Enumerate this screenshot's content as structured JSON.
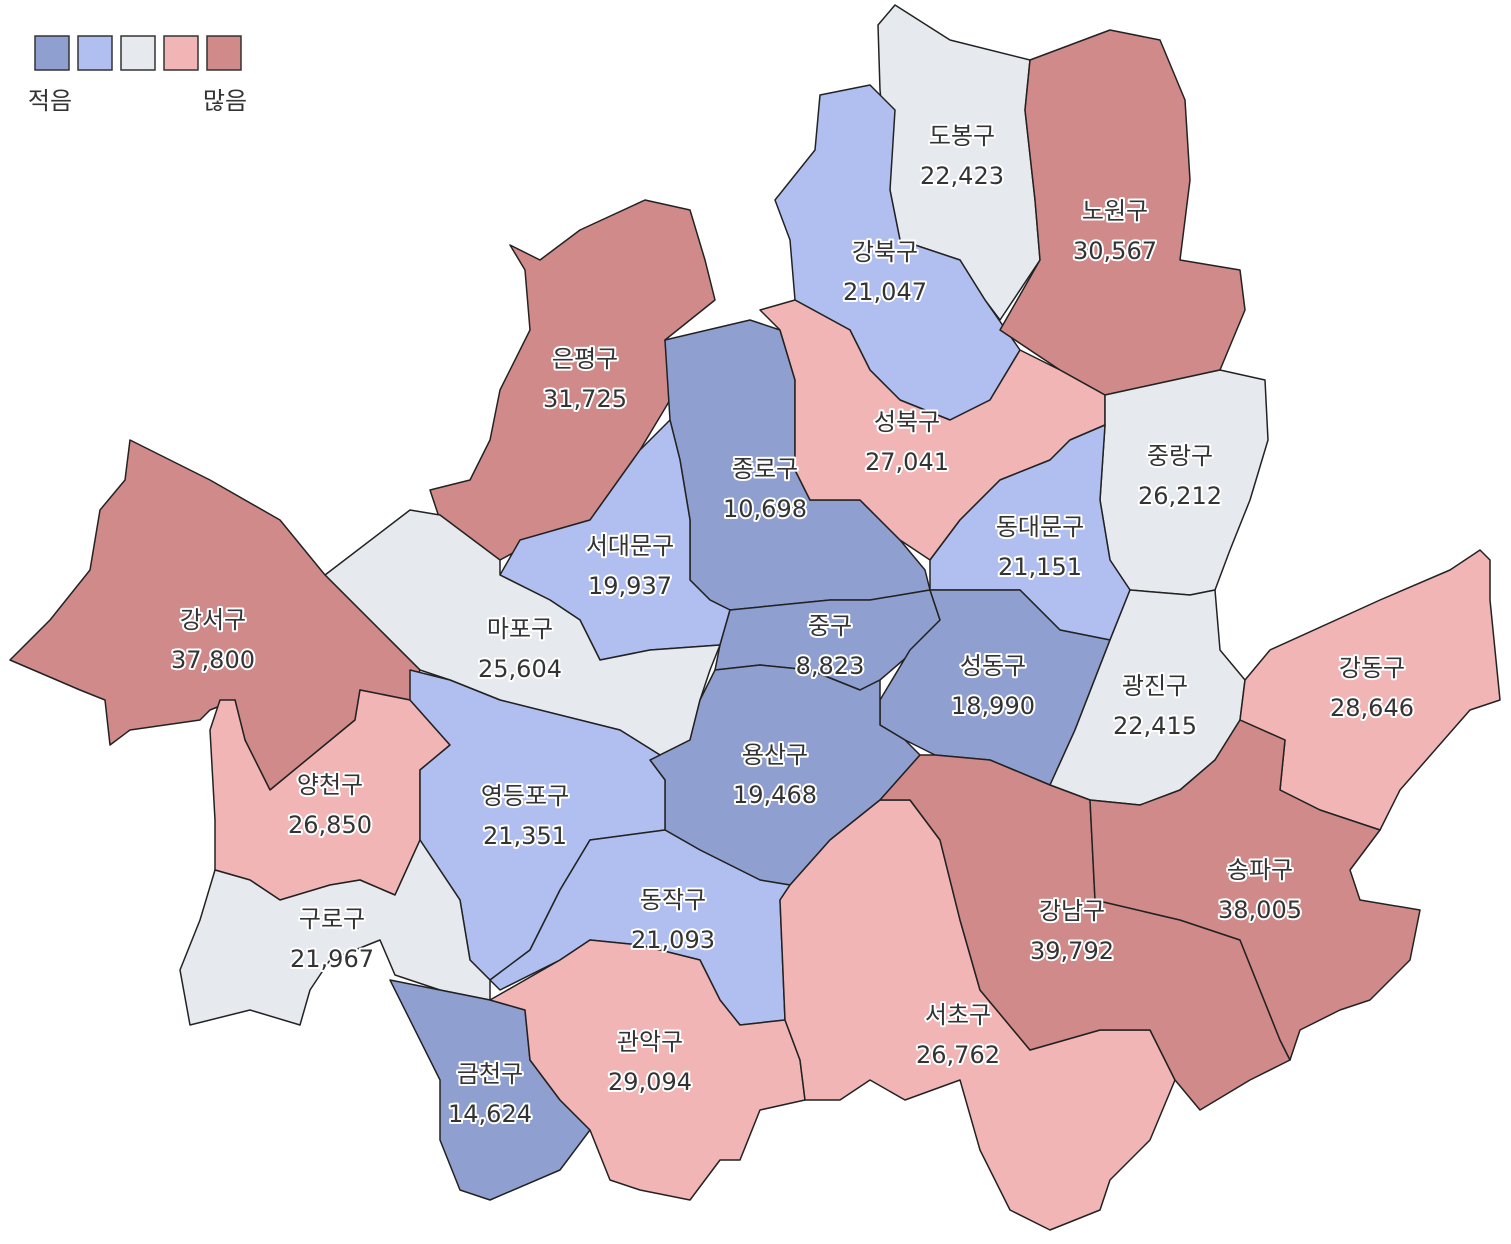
{
  "legend": {
    "colors": [
      "#8f9fcf",
      "#b0bff0",
      "#e6e9ed",
      "#f2b5b6",
      "#d08a8a"
    ],
    "low_label": "적음",
    "high_label": "많음"
  },
  "districts": [
    {
      "name": "도봉구",
      "value": 22423,
      "value_label": "22,423",
      "color": "#e6e9ed"
    },
    {
      "name": "강북구",
      "value": 21047,
      "value_label": "21,047",
      "color": "#b0bff0"
    },
    {
      "name": "노원구",
      "value": 30567,
      "value_label": "30,567",
      "color": "#d08a8a"
    },
    {
      "name": "은평구",
      "value": 31725,
      "value_label": "31,725",
      "color": "#d08a8a"
    },
    {
      "name": "종로구",
      "value": 10698,
      "value_label": "10,698",
      "color": "#8f9fcf"
    },
    {
      "name": "서대문구",
      "value": 19937,
      "value_label": "19,937",
      "color": "#b0bff0"
    },
    {
      "name": "성북구",
      "value": 27041,
      "value_label": "27,041",
      "color": "#f2b5b6"
    },
    {
      "name": "중랑구",
      "value": 26212,
      "value_label": "26,212",
      "color": "#e6e9ed"
    },
    {
      "name": "동대문구",
      "value": 21151,
      "value_label": "21,151",
      "color": "#b0bff0"
    },
    {
      "name": "마포구",
      "value": 25604,
      "value_label": "25,604",
      "color": "#e6e9ed"
    },
    {
      "name": "강서구",
      "value": 37800,
      "value_label": "37,800",
      "color": "#d08a8a"
    },
    {
      "name": "중구",
      "value": 8823,
      "value_label": "8,823",
      "color": "#8f9fcf"
    },
    {
      "name": "성동구",
      "value": 18990,
      "value_label": "18,990",
      "color": "#8f9fcf"
    },
    {
      "name": "광진구",
      "value": 22415,
      "value_label": "22,415",
      "color": "#e6e9ed"
    },
    {
      "name": "강동구",
      "value": 28646,
      "value_label": "28,646",
      "color": "#f2b5b6"
    },
    {
      "name": "용산구",
      "value": 19468,
      "value_label": "19,468",
      "color": "#8f9fcf"
    },
    {
      "name": "양천구",
      "value": 26850,
      "value_label": "26,850",
      "color": "#f2b5b6"
    },
    {
      "name": "영등포구",
      "value": 21351,
      "value_label": "21,351",
      "color": "#b0bff0"
    },
    {
      "name": "구로구",
      "value": 21967,
      "value_label": "21,967",
      "color": "#e6e9ed"
    },
    {
      "name": "동작구",
      "value": 21093,
      "value_label": "21,093",
      "color": "#b0bff0"
    },
    {
      "name": "금천구",
      "value": 14624,
      "value_label": "14,624",
      "color": "#8f9fcf"
    },
    {
      "name": "관악구",
      "value": 29094,
      "value_label": "29,094",
      "color": "#f2b5b6"
    },
    {
      "name": "서초구",
      "value": 26762,
      "value_label": "26,762",
      "color": "#f2b5b6"
    },
    {
      "name": "강남구",
      "value": 39792,
      "value_label": "39,792",
      "color": "#d08a8a"
    },
    {
      "name": "송파구",
      "value": 38005,
      "value_label": "38,005",
      "color": "#d08a8a"
    }
  ]
}
